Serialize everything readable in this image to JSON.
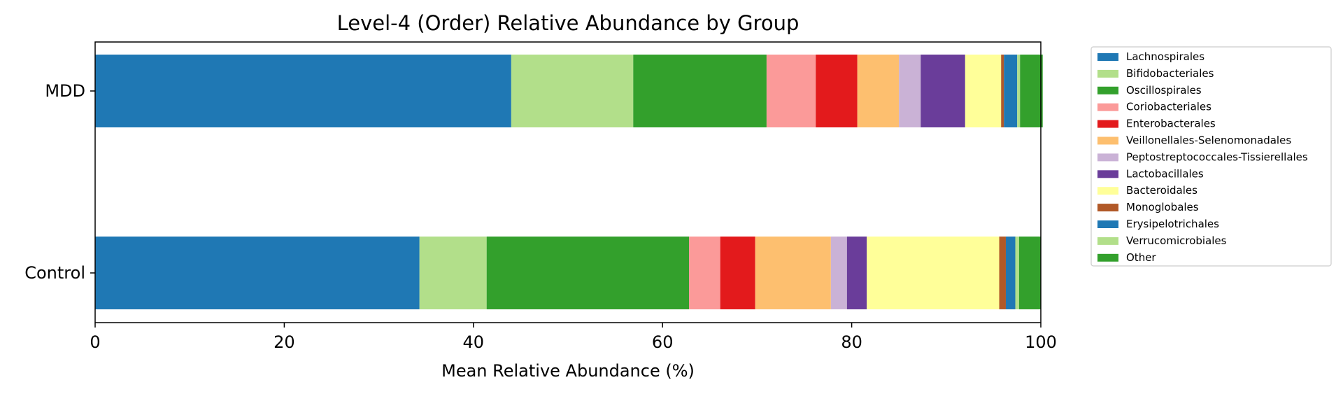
{
  "chart_data": {
    "type": "bar",
    "orientation": "horizontal",
    "stacked": true,
    "title": "Level-4 (Order) Relative Abundance by Group",
    "xlabel": "Mean Relative Abundance (%)",
    "ylabel": "",
    "xlim": [
      0,
      100
    ],
    "xticks": [
      0,
      20,
      40,
      60,
      80,
      100
    ],
    "grid": false,
    "legend_position": "outside-right",
    "categories": [
      "MDD",
      "Control"
    ],
    "series": [
      {
        "name": "Lachnospirales",
        "color": "#1f78b4",
        "values": [
          44.0,
          34.3
        ]
      },
      {
        "name": "Bifidobacteriales",
        "color": "#b2df8a",
        "values": [
          12.9,
          7.1
        ]
      },
      {
        "name": "Oscillospirales",
        "color": "#33a02c",
        "values": [
          14.1,
          21.4
        ]
      },
      {
        "name": "Coriobacteriales",
        "color": "#fb9a99",
        "values": [
          5.2,
          3.3
        ]
      },
      {
        "name": "Enterobacterales",
        "color": "#e31a1c",
        "values": [
          4.4,
          3.7
        ]
      },
      {
        "name": "Veillonellales-Selenomonadales",
        "color": "#fdbf6f",
        "values": [
          4.4,
          8.0
        ]
      },
      {
        "name": "Peptostreptococcales-Tissierellales",
        "color": "#cab2d6",
        "values": [
          2.3,
          1.7
        ]
      },
      {
        "name": "Lactobacillales",
        "color": "#6a3d9a",
        "values": [
          4.7,
          2.1
        ]
      },
      {
        "name": "Bacteroidales",
        "color": "#ffff99",
        "values": [
          3.8,
          14.0
        ]
      },
      {
        "name": "Monoglobales",
        "color": "#b15928",
        "values": [
          0.3,
          0.7
        ]
      },
      {
        "name": "Erysipelotrichales",
        "color": "#1f78b4",
        "values": [
          1.4,
          1.0
        ]
      },
      {
        "name": "Verrucomicrobiales",
        "color": "#b2df8a",
        "values": [
          0.3,
          0.4
        ]
      },
      {
        "name": "Other",
        "color": "#33a02c",
        "values": [
          2.4,
          2.3
        ]
      }
    ]
  }
}
